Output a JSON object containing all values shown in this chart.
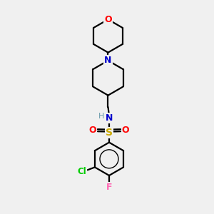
{
  "background_color": "#f0f0f0",
  "atom_colors": {
    "C": "#000000",
    "N": "#0000cc",
    "O": "#ff0000",
    "S": "#ccaa00",
    "Cl": "#00cc00",
    "F": "#ff69b4",
    "H": "#6699aa"
  },
  "figsize": [
    3.0,
    3.0
  ],
  "dpi": 100,
  "lw": 1.6
}
